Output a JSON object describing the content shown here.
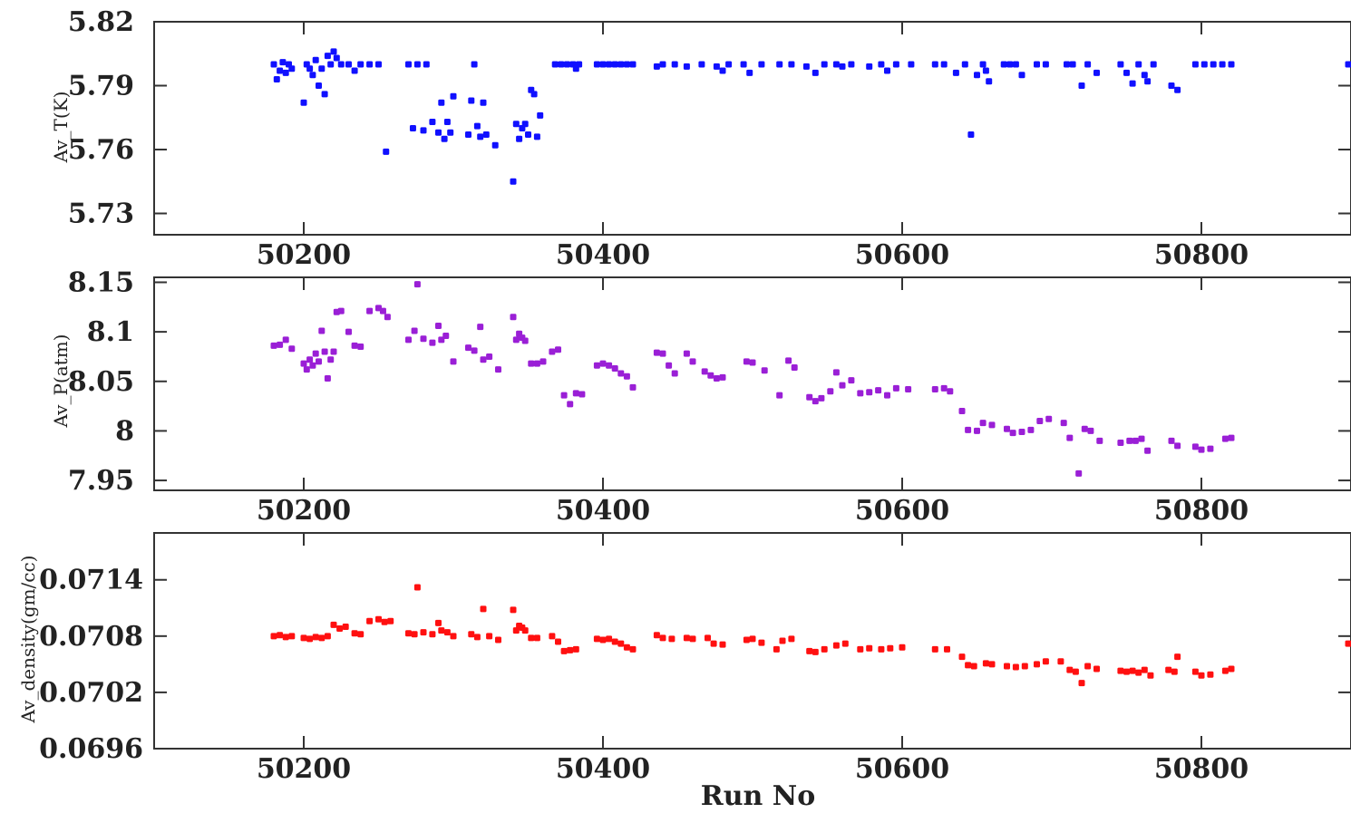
{
  "chart_data": [
    {
      "type": "scatter",
      "title": "",
      "xlabel": "",
      "ylabel": "Av_T(K)",
      "xlim": [
        50100,
        50900
      ],
      "ylim": [
        5.72,
        5.82
      ],
      "x_ticks": [
        50200,
        50400,
        50600,
        50800
      ],
      "x_tick_labels": [
        "50200",
        "50400",
        "50600",
        "50800"
      ],
      "y_ticks": [
        5.73,
        5.76,
        5.79,
        5.82
      ],
      "y_tick_labels": [
        "5.73",
        "5.76",
        "5.79",
        "5.82"
      ],
      "color": "#1010ff",
      "series": [
        {
          "x": [
            50180,
            50182,
            50184,
            50186,
            50188,
            50190,
            50192,
            50200,
            50202,
            50204,
            50206,
            50208,
            50210,
            50212,
            50214,
            50216,
            50218,
            50220,
            50222,
            50225,
            50230,
            50234,
            50238,
            50244,
            50250,
            50255,
            50270,
            50273,
            50276,
            50280,
            50282,
            50286,
            50290,
            50292,
            50294,
            50296,
            50298,
            50300,
            50310,
            50312,
            50314,
            50316,
            50318,
            50320,
            50322,
            50328,
            50340,
            50342,
            50344,
            50346,
            50348,
            50350,
            50352,
            50354,
            50356,
            50358,
            50368,
            50372,
            50376,
            50380,
            50382,
            50384,
            50396,
            50400,
            50404,
            50408,
            50412,
            50416,
            50420,
            50436,
            50440,
            50448,
            50456,
            50466,
            50476,
            50480,
            50484,
            50494,
            50498,
            50506,
            50518,
            50526,
            50536,
            50542,
            50548,
            50556,
            50560,
            50566,
            50578,
            50586,
            50590,
            50596,
            50606,
            50622,
            50628,
            50636,
            50642,
            50646,
            50650,
            50654,
            50656,
            50658,
            50668,
            50672,
            50676,
            50680,
            50690,
            50696,
            50710,
            50714,
            50720,
            50724,
            50730,
            50746,
            50750,
            50754,
            50758,
            50762,
            50764,
            50768,
            50780,
            50784,
            50796,
            50802,
            50808,
            50814,
            50820,
            50906
          ],
          "y": [
            5.8,
            5.793,
            5.797,
            5.801,
            5.796,
            5.8,
            5.798,
            5.782,
            5.8,
            5.798,
            5.795,
            5.802,
            5.79,
            5.798,
            5.786,
            5.804,
            5.8,
            5.806,
            5.803,
            5.8,
            5.8,
            5.797,
            5.8,
            5.8,
            5.8,
            5.759,
            5.8,
            5.77,
            5.8,
            5.769,
            5.8,
            5.773,
            5.768,
            5.782,
            5.765,
            5.773,
            5.768,
            5.785,
            5.767,
            5.783,
            5.8,
            5.771,
            5.766,
            5.782,
            5.767,
            5.762,
            5.745,
            5.772,
            5.765,
            5.77,
            5.772,
            5.767,
            5.788,
            5.786,
            5.766,
            5.776,
            5.8,
            5.8,
            5.8,
            5.8,
            5.798,
            5.8,
            5.8,
            5.8,
            5.8,
            5.8,
            5.8,
            5.8,
            5.8,
            5.799,
            5.8,
            5.8,
            5.799,
            5.8,
            5.799,
            5.797,
            5.8,
            5.8,
            5.796,
            5.8,
            5.8,
            5.8,
            5.799,
            5.796,
            5.8,
            5.8,
            5.799,
            5.8,
            5.799,
            5.8,
            5.797,
            5.8,
            5.8,
            5.8,
            5.8,
            5.796,
            5.8,
            5.767,
            5.795,
            5.8,
            5.797,
            5.792,
            5.8,
            5.8,
            5.8,
            5.795,
            5.8,
            5.8,
            5.8,
            5.8,
            5.79,
            5.8,
            5.796,
            5.8,
            5.796,
            5.791,
            5.8,
            5.795,
            5.792,
            5.8,
            5.79,
            5.788,
            5.8,
            5.8,
            5.8,
            5.8,
            5.8,
            5.8
          ]
        }
      ]
    },
    {
      "type": "scatter",
      "title": "",
      "xlabel": "",
      "ylabel": "Av_P(atm)",
      "xlim": [
        50100,
        50900
      ],
      "ylim": [
        7.94,
        8.155
      ],
      "x_ticks": [
        50200,
        50400,
        50600,
        50800
      ],
      "x_tick_labels": [
        "50200",
        "50400",
        "50600",
        "50800"
      ],
      "y_ticks": [
        7.95,
        8.0,
        8.05,
        8.1,
        8.15
      ],
      "y_tick_labels": [
        "7.95",
        "8",
        "8.05",
        "8.1",
        "8.15"
      ],
      "color": "#9a1fd6",
      "series": [
        {
          "x": [
            50180,
            50184,
            50188,
            50192,
            50200,
            50202,
            50204,
            50206,
            50208,
            50210,
            50212,
            50214,
            50216,
            50218,
            50220,
            50222,
            50225,
            50230,
            50234,
            50238,
            50244,
            50250,
            50253,
            50256,
            50270,
            50274,
            50276,
            50280,
            50286,
            50290,
            50292,
            50295,
            50300,
            50310,
            50314,
            50318,
            50320,
            50324,
            50330,
            50340,
            50342,
            50344,
            50346,
            50348,
            50352,
            50356,
            50360,
            50366,
            50370,
            50374,
            50378,
            50382,
            50386,
            50396,
            50400,
            50404,
            50408,
            50412,
            50416,
            50420,
            50436,
            50440,
            50444,
            50448,
            50456,
            50460,
            50468,
            50472,
            50476,
            50480,
            50496,
            50500,
            50508,
            50518,
            50524,
            50528,
            50538,
            50542,
            50546,
            50552,
            50556,
            50560,
            50566,
            50572,
            50578,
            50584,
            50590,
            50596,
            50604,
            50622,
            50628,
            50632,
            50640,
            50644,
            50650,
            50654,
            50660,
            50670,
            50674,
            50680,
            50686,
            50692,
            50698,
            50708,
            50712,
            50718,
            50722,
            50726,
            50732,
            50746,
            50752,
            50756,
            50760,
            50764,
            50780,
            50784,
            50796,
            50800,
            50806,
            50816,
            50820
          ],
          "y": [
            8.086,
            8.087,
            8.092,
            8.083,
            8.068,
            8.062,
            8.072,
            8.066,
            8.078,
            8.07,
            8.101,
            8.08,
            8.053,
            8.072,
            8.08,
            8.12,
            8.121,
            8.1,
            8.086,
            8.085,
            8.121,
            8.124,
            8.121,
            8.115,
            8.092,
            8.101,
            8.148,
            8.093,
            8.089,
            8.106,
            8.092,
            8.096,
            8.07,
            8.084,
            8.081,
            8.105,
            8.072,
            8.075,
            8.062,
            8.115,
            8.092,
            8.098,
            8.094,
            8.091,
            8.068,
            8.068,
            8.07,
            8.08,
            8.082,
            8.036,
            8.027,
            8.038,
            8.037,
            8.066,
            8.068,
            8.066,
            8.063,
            8.058,
            8.055,
            8.044,
            8.079,
            8.078,
            8.066,
            8.058,
            8.078,
            8.07,
            8.06,
            8.056,
            8.053,
            8.054,
            8.07,
            8.069,
            8.061,
            8.036,
            8.071,
            8.064,
            8.034,
            8.03,
            8.033,
            8.04,
            8.059,
            8.046,
            8.051,
            8.038,
            8.039,
            8.041,
            8.036,
            8.043,
            8.042,
            8.042,
            8.043,
            8.04,
            8.02,
            8.001,
            8.0,
            8.008,
            8.006,
            8.002,
            7.998,
            7.999,
            8.001,
            8.01,
            8.012,
            8.008,
            7.993,
            7.957,
            8.002,
            8.0,
            7.99,
            7.988,
            7.99,
            7.99,
            7.992,
            7.98,
            7.99,
            7.985,
            7.984,
            7.981,
            7.982,
            7.992,
            7.993
          ]
        }
      ]
    },
    {
      "type": "scatter",
      "title": "",
      "xlabel": "Run No",
      "ylabel": "Av_density(gm/cc)",
      "xlim": [
        50100,
        50900
      ],
      "ylim": [
        0.0696,
        0.0719
      ],
      "x_ticks": [
        50200,
        50400,
        50600,
        50800
      ],
      "x_tick_labels": [
        "50200",
        "50400",
        "50600",
        "50800"
      ],
      "y_ticks": [
        0.0696,
        0.0702,
        0.0708,
        0.0714
      ],
      "y_tick_labels": [
        "0.0696",
        "0.0702",
        "0.0708",
        "0.0714"
      ],
      "color": "#ff1010",
      "series": [
        {
          "x": [
            50180,
            50184,
            50188,
            50192,
            50200,
            50204,
            50208,
            50212,
            50216,
            50220,
            50224,
            50228,
            50234,
            50238,
            50244,
            50250,
            50254,
            50258,
            50270,
            50274,
            50276,
            50280,
            50286,
            50290,
            50292,
            50296,
            50300,
            50312,
            50316,
            50320,
            50324,
            50330,
            50340,
            50342,
            50344,
            50346,
            50348,
            50352,
            50356,
            50366,
            50370,
            50374,
            50378,
            50382,
            50396,
            50400,
            50404,
            50408,
            50412,
            50416,
            50420,
            50436,
            50440,
            50446,
            50456,
            50460,
            50470,
            50474,
            50480,
            50496,
            50500,
            50506,
            50516,
            50520,
            50526,
            50538,
            50542,
            50548,
            50556,
            50562,
            50572,
            50578,
            50586,
            50592,
            50600,
            50622,
            50630,
            50640,
            50644,
            50648,
            50656,
            50660,
            50670,
            50676,
            50682,
            50690,
            50696,
            50706,
            50712,
            50716,
            50720,
            50724,
            50730,
            50746,
            50750,
            50754,
            50758,
            50762,
            50766,
            50778,
            50782,
            50784,
            50796,
            50800,
            50806,
            50816,
            50820,
            50906
          ],
          "y": [
            0.0708,
            0.07081,
            0.07079,
            0.0708,
            0.07078,
            0.07077,
            0.07079,
            0.07078,
            0.0708,
            0.07092,
            0.07088,
            0.0709,
            0.07083,
            0.07082,
            0.07096,
            0.07098,
            0.07095,
            0.07096,
            0.07083,
            0.07082,
            0.07132,
            0.07084,
            0.07082,
            0.07094,
            0.07086,
            0.07084,
            0.0708,
            0.07082,
            0.07079,
            0.07109,
            0.0708,
            0.07076,
            0.07108,
            0.07086,
            0.07091,
            0.07089,
            0.07086,
            0.07078,
            0.07078,
            0.0708,
            0.07074,
            0.07064,
            0.07065,
            0.07066,
            0.07077,
            0.07076,
            0.07077,
            0.07074,
            0.07072,
            0.07068,
            0.07066,
            0.07081,
            0.07078,
            0.07077,
            0.07078,
            0.07077,
            0.07078,
            0.07072,
            0.07071,
            0.07076,
            0.07077,
            0.07073,
            0.07066,
            0.07075,
            0.07077,
            0.07064,
            0.07063,
            0.07066,
            0.0707,
            0.07072,
            0.07066,
            0.07067,
            0.07066,
            0.07067,
            0.07068,
            0.07066,
            0.07066,
            0.07058,
            0.07049,
            0.07048,
            0.07051,
            0.0705,
            0.07048,
            0.07047,
            0.07048,
            0.0705,
            0.07053,
            0.07053,
            0.07044,
            0.07042,
            0.0703,
            0.07048,
            0.07045,
            0.07043,
            0.07042,
            0.07043,
            0.07041,
            0.07044,
            0.07038,
            0.07044,
            0.07042,
            0.07058,
            0.07042,
            0.07038,
            0.07039,
            0.07043,
            0.07045,
            0.07072
          ]
        }
      ]
    }
  ]
}
